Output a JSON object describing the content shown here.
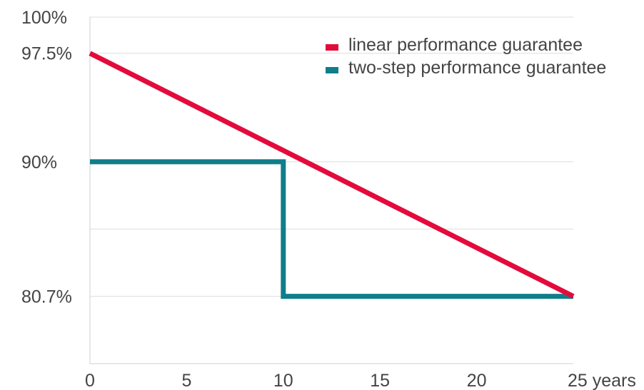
{
  "chart_data": {
    "type": "line",
    "title": "",
    "xlabel": "",
    "ylabel": "",
    "x_ticks": [
      0,
      5,
      10,
      15,
      20,
      25
    ],
    "x_tick_labels": [
      "0",
      "5",
      "10",
      "15",
      "20",
      "25 years"
    ],
    "xlim": [
      0,
      25
    ],
    "y_tick_labels": [
      {
        "value": 100,
        "label": "100%"
      },
      {
        "value": 97.5,
        "label": "97.5%"
      },
      {
        "value": 90,
        "label": "90%"
      },
      {
        "value": 80.7,
        "label": "80.7%"
      }
    ],
    "y_gridlines": [
      100,
      97.5,
      90,
      85.35,
      80.7,
      76.05
    ],
    "ylim": [
      76.05,
      100
    ],
    "grid": true,
    "legend_position": "top-right",
    "series": [
      {
        "name": "linear performance guarantee",
        "color": "#e30b3c",
        "x": [
          0,
          25
        ],
        "y": [
          97.5,
          80.7
        ]
      },
      {
        "name": "two-step performance guarantee",
        "color": "#0f7e8a",
        "x": [
          0,
          10,
          10,
          25
        ],
        "y": [
          90,
          90,
          80.7,
          80.7
        ]
      }
    ]
  }
}
